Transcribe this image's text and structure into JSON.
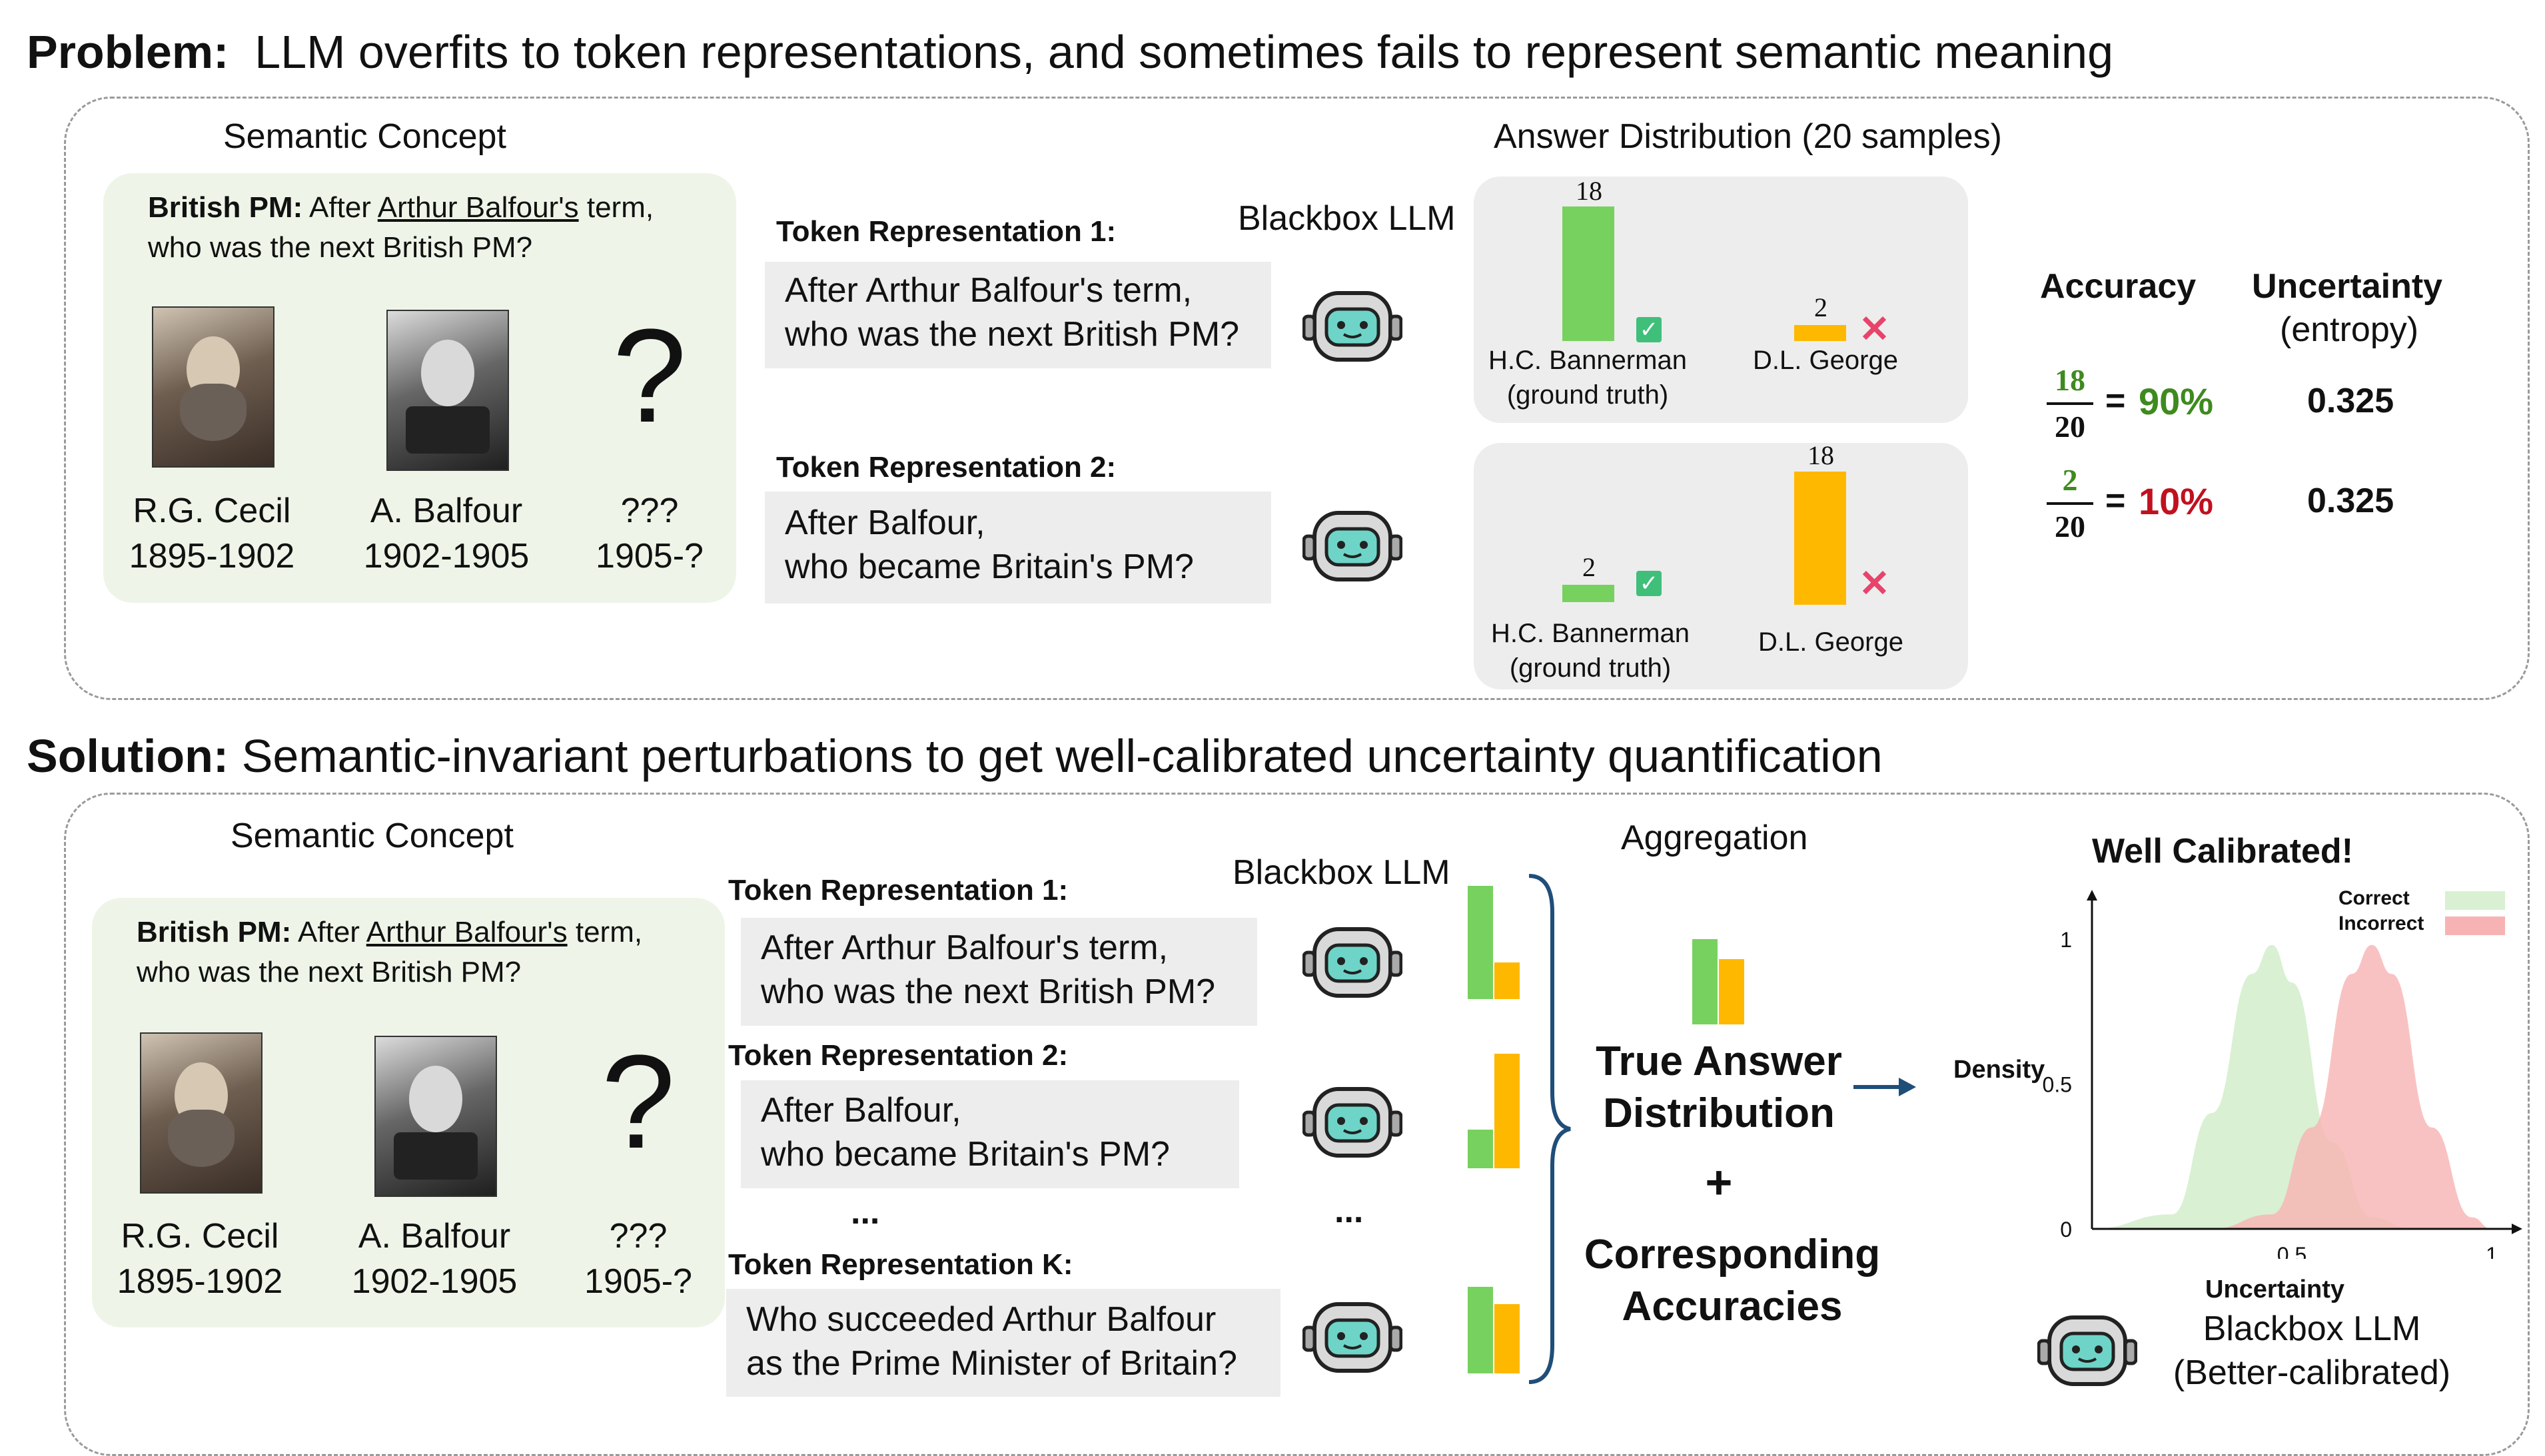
{
  "problem": {
    "title_bold": "Problem:",
    "title_rest": "LLM overfits to token representations, and sometimes fails to represent semantic meaning",
    "semantic_concept_label": "Semantic Concept",
    "question_bold": "British PM:",
    "question_pre": "After",
    "question_link": "Arthur Balfour's",
    "question_post": "term,",
    "question_line2": "who was the next British PM?",
    "people": [
      {
        "name": "R.G. Cecil",
        "years": "1895-1902"
      },
      {
        "name": "A. Balfour",
        "years": "1902-1905"
      },
      {
        "name": "???",
        "years": "1905-?"
      }
    ],
    "question_mark": "?",
    "blackbox_label": "Blackbox LLM",
    "answer_dist_label": "Answer Distribution (20 samples)",
    "token_reps": [
      {
        "header": "Token Representation 1:",
        "line1": "After Arthur Balfour's term,",
        "line2": "who was the next British PM?"
      },
      {
        "header": "Token Representation 2:",
        "line1": "After Balfour,",
        "line2": "who became Britain's PM?"
      }
    ],
    "distributions": [
      {
        "a_count": "18",
        "a_value": 18,
        "a_name": "H.C. Bannerman",
        "a_sub": "(ground truth)",
        "b_count": "2",
        "b_value": 2,
        "b_name": "D.L. George"
      },
      {
        "a_count": "2",
        "a_value": 2,
        "a_name": "H.C. Bannerman",
        "a_sub": "(ground truth)",
        "b_count": "18",
        "b_value": 18,
        "b_name": "D.L. George"
      }
    ],
    "metrics": {
      "accuracy_header": "Accuracy",
      "uncertainty_header": "Uncertainty",
      "uncertainty_sub": "(entropy)",
      "rows": [
        {
          "num": "18",
          "den": "20",
          "eq": "=",
          "pct": "90%",
          "entropy": "0.325"
        },
        {
          "num": "2",
          "den": "20",
          "eq": "=",
          "pct": "10%",
          "entropy": "0.325"
        }
      ]
    }
  },
  "solution": {
    "title_bold": "Solution:",
    "title_rest": "Semantic-invariant perturbations to get well-calibrated uncertainty quantification",
    "semantic_concept_label": "Semantic Concept",
    "question_bold": "British PM:",
    "question_pre": "After",
    "question_link": "Arthur Balfour's",
    "question_post": "term,",
    "question_line2": "who was the next British PM?",
    "people": [
      {
        "name": "R.G. Cecil",
        "years": "1895-1902"
      },
      {
        "name": "A. Balfour",
        "years": "1902-1905"
      },
      {
        "name": "???",
        "years": "1905-?"
      }
    ],
    "question_mark": "?",
    "blackbox_label": "Blackbox LLM",
    "token_reps": [
      {
        "header": "Token Representation 1:",
        "line1": "After Arthur Balfour's term,",
        "line2": "who was the next British PM?"
      },
      {
        "header": "Token Representation 2:",
        "line1": "After Balfour,",
        "line2": "who became Britain's PM?"
      },
      {
        "header": "Token Representation K:",
        "line1": "Who succeeded Arthur Balfour",
        "line2": "as the Prime Minister of Britain?"
      }
    ],
    "ellipsis": "...",
    "aggregation_label": "Aggregation",
    "true_answer_1": "True Answer",
    "true_answer_2": "Distribution",
    "plus": "+",
    "corr_1": "Corresponding",
    "corr_2": "Accuracies",
    "calibrated_title": "Well Calibrated!",
    "legend_correct": "Correct",
    "legend_incorrect": "Incorrect",
    "density_label": "Density",
    "uncertainty_label": "Uncertainty",
    "y_ticks": [
      "1",
      "0.5",
      "0"
    ],
    "x_ticks": [
      "0.5",
      "1"
    ],
    "final_llm_1": "Blackbox LLM",
    "final_llm_2": "(Better-calibrated)"
  },
  "colors": {
    "green_bar": "#77d15e",
    "orange_bar": "#ffb800",
    "accuracy_good": "#3f8a1f",
    "accuracy_bad": "#c0111f",
    "correct_curve": "#d9f0d3",
    "incorrect_curve": "#f7b3b3"
  },
  "chart_data": {
    "type": "area",
    "title": "Well Calibrated!",
    "xlabel": "Uncertainty",
    "ylabel": "Density",
    "xlim": [
      0,
      1
    ],
    "ylim": [
      0,
      1
    ],
    "series": [
      {
        "name": "Correct",
        "x": [
          0.0,
          0.2,
          0.3,
          0.4,
          0.45,
          0.5,
          0.6,
          0.7,
          0.8
        ],
        "values": [
          0.0,
          0.05,
          0.4,
          0.88,
          0.98,
          0.85,
          0.3,
          0.04,
          0.0
        ]
      },
      {
        "name": "Incorrect",
        "x": [
          0.3,
          0.45,
          0.55,
          0.65,
          0.7,
          0.75,
          0.85,
          0.95,
          1.0
        ],
        "values": [
          0.0,
          0.05,
          0.35,
          0.88,
          0.98,
          0.88,
          0.35,
          0.04,
          0.0
        ]
      }
    ]
  }
}
